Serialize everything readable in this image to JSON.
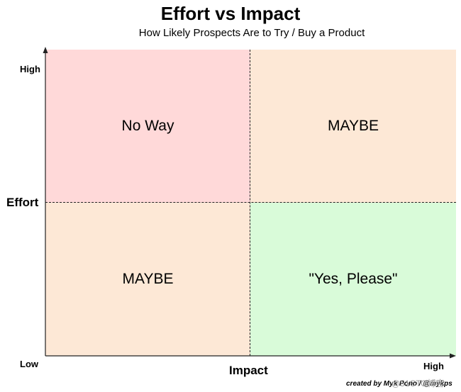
{
  "header": {
    "title": "Effort vs Impact",
    "subtitle": "How Likely Prospects Are to Try / Buy a Product"
  },
  "quadrants": {
    "top_left": {
      "label": "No Way",
      "color": "#ffd9d9"
    },
    "top_right": {
      "label": "MAYBE",
      "color": "#fde8d6"
    },
    "bottom_left": {
      "label": "MAYBE",
      "color": "#fde8d6"
    },
    "bottom_right": {
      "label": "\"Yes, Please\"",
      "color": "#d9fbd9"
    }
  },
  "axes": {
    "y_label": "Effort",
    "x_label": "Impact",
    "y_high": "High",
    "low": "Low",
    "x_high": "High"
  },
  "footer": {
    "credit": "created by Myk Pono / @mykps",
    "watermark": "@51CTO博客"
  }
}
